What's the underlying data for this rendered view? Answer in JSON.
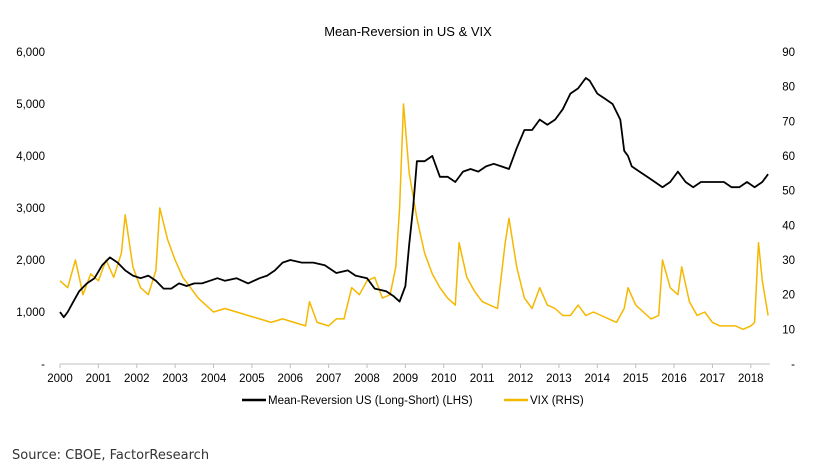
{
  "chart_data": {
    "type": "line",
    "title": "Mean-Reversion in US & VIX",
    "xlabel": "",
    "ylabel_left": "",
    "ylabel_right": "",
    "x_ticks": [
      "2000",
      "2001",
      "2002",
      "2003",
      "2004",
      "2005",
      "2006",
      "2007",
      "2008",
      "2009",
      "2010",
      "2011",
      "2012",
      "2013",
      "2014",
      "2015",
      "2016",
      "2017",
      "2018"
    ],
    "y_left_ticks": [
      "-",
      "1,000",
      "2,000",
      "3,000",
      "4,000",
      "5,000",
      "6,000"
    ],
    "y_right_ticks": [
      "-",
      "10",
      "20",
      "30",
      "40",
      "50",
      "60",
      "70",
      "80",
      "90"
    ],
    "ylim_left": [
      0,
      6000
    ],
    "ylim_right": [
      0,
      90
    ],
    "xlim": [
      2000.0,
      2018.5
    ],
    "legend_position": "bottom",
    "grid": false,
    "series": [
      {
        "name": "Mean-Reversion US (Long-Short) (LHS)",
        "axis": "left",
        "color": "#000000",
        "x": [
          2000.0,
          2000.1,
          2000.2,
          2000.35,
          2000.5,
          2000.7,
          2000.9,
          2001.1,
          2001.3,
          2001.5,
          2001.7,
          2001.9,
          2002.1,
          2002.3,
          2002.5,
          2002.7,
          2002.9,
          2003.1,
          2003.3,
          2003.5,
          2003.7,
          2003.9,
          2004.1,
          2004.3,
          2004.6,
          2004.9,
          2005.2,
          2005.4,
          2005.6,
          2005.8,
          2006.0,
          2006.3,
          2006.6,
          2006.9,
          2007.2,
          2007.5,
          2007.7,
          2008.0,
          2008.2,
          2008.5,
          2008.7,
          2008.85,
          2009.0,
          2009.1,
          2009.2,
          2009.3,
          2009.5,
          2009.7,
          2009.9,
          2010.1,
          2010.3,
          2010.5,
          2010.7,
          2010.9,
          2011.1,
          2011.3,
          2011.5,
          2011.7,
          2011.9,
          2012.1,
          2012.3,
          2012.5,
          2012.7,
          2012.9,
          2013.1,
          2013.3,
          2013.5,
          2013.7,
          2013.8,
          2014.0,
          2014.2,
          2014.4,
          2014.6,
          2014.7,
          2014.8,
          2014.9,
          2015.1,
          2015.3,
          2015.5,
          2015.7,
          2015.9,
          2016.1,
          2016.3,
          2016.5,
          2016.7,
          2016.9,
          2017.1,
          2017.3,
          2017.5,
          2017.7,
          2017.9,
          2018.1,
          2018.3,
          2018.45
        ],
        "y": [
          1000,
          900,
          1000,
          1200,
          1400,
          1550,
          1650,
          1900,
          2050,
          1950,
          1800,
          1700,
          1650,
          1700,
          1600,
          1450,
          1450,
          1550,
          1500,
          1550,
          1550,
          1600,
          1650,
          1600,
          1650,
          1550,
          1650,
          1700,
          1800,
          1950,
          2000,
          1950,
          1950,
          1900,
          1750,
          1800,
          1700,
          1650,
          1450,
          1400,
          1300,
          1200,
          1500,
          2300,
          3000,
          3900,
          3900,
          4000,
          3600,
          3600,
          3500,
          3700,
          3750,
          3700,
          3800,
          3850,
          3800,
          3750,
          4150,
          4500,
          4500,
          4700,
          4600,
          4700,
          4900,
          5200,
          5300,
          5500,
          5450,
          5200,
          5100,
          5000,
          4700,
          4100,
          4000,
          3800,
          3700,
          3600,
          3500,
          3400,
          3500,
          3700,
          3500,
          3400,
          3500,
          3500,
          3500,
          3500,
          3400,
          3400,
          3500,
          3400,
          3500,
          3650
        ]
      },
      {
        "name": "VIX (RHS)",
        "axis": "right",
        "color": "#F5B800",
        "x": [
          2000.0,
          2000.2,
          2000.4,
          2000.6,
          2000.8,
          2001.0,
          2001.2,
          2001.4,
          2001.6,
          2001.7,
          2001.9,
          2002.1,
          2002.3,
          2002.5,
          2002.6,
          2002.8,
          2003.0,
          2003.2,
          2003.4,
          2003.6,
          2003.8,
          2004.0,
          2004.3,
          2004.6,
          2004.9,
          2005.2,
          2005.5,
          2005.8,
          2006.1,
          2006.4,
          2006.5,
          2006.7,
          2007.0,
          2007.2,
          2007.4,
          2007.6,
          2007.8,
          2008.0,
          2008.2,
          2008.4,
          2008.6,
          2008.75,
          2008.85,
          2008.95,
          2009.1,
          2009.3,
          2009.5,
          2009.7,
          2009.9,
          2010.1,
          2010.3,
          2010.4,
          2010.6,
          2010.8,
          2011.0,
          2011.2,
          2011.4,
          2011.6,
          2011.7,
          2011.9,
          2012.1,
          2012.3,
          2012.5,
          2012.7,
          2012.9,
          2013.1,
          2013.3,
          2013.5,
          2013.7,
          2013.9,
          2014.1,
          2014.3,
          2014.5,
          2014.7,
          2014.8,
          2015.0,
          2015.2,
          2015.4,
          2015.6,
          2015.7,
          2015.9,
          2016.1,
          2016.2,
          2016.4,
          2016.6,
          2016.8,
          2017.0,
          2017.2,
          2017.4,
          2017.6,
          2017.8,
          2018.0,
          2018.1,
          2018.2,
          2018.3,
          2018.45
        ],
        "y": [
          24,
          22,
          30,
          20,
          26,
          24,
          30,
          25,
          32,
          43,
          28,
          22,
          20,
          27,
          45,
          36,
          30,
          25,
          22,
          19,
          17,
          15,
          16,
          15,
          14,
          13,
          12,
          13,
          12,
          11,
          18,
          12,
          11,
          13,
          13,
          22,
          20,
          24,
          25,
          19,
          20,
          28,
          45,
          75,
          55,
          42,
          32,
          26,
          22,
          19,
          17,
          35,
          25,
          21,
          18,
          17,
          16,
          35,
          42,
          28,
          19,
          16,
          22,
          17,
          16,
          14,
          14,
          17,
          14,
          15,
          14,
          13,
          12,
          16,
          22,
          17,
          15,
          13,
          14,
          30,
          22,
          20,
          28,
          18,
          14,
          15,
          12,
          11,
          11,
          11,
          10,
          11,
          12,
          35,
          24,
          14
        ]
      }
    ]
  },
  "legend": {
    "item_1": "Mean-Reversion US (Long-Short) (LHS)",
    "item_2": "VIX (RHS)"
  },
  "source": "Source: CBOE, FactorResearch"
}
